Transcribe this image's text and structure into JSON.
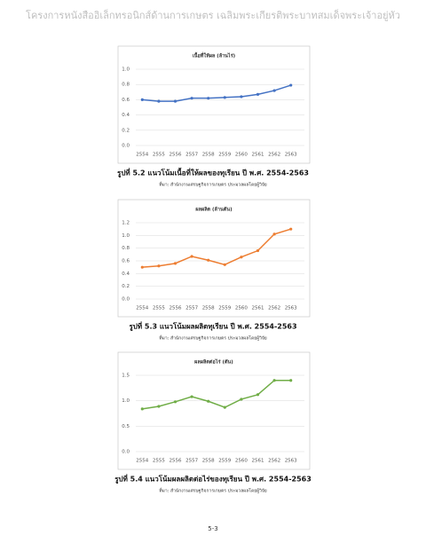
{
  "header": {
    "title": "โครงการหนังสืออิเล็กทรอนิกส์ด้านการเกษตร เฉลิมพระเกียรติพระบาทสมเด็จพระเจ้าอยู่หัว"
  },
  "chart_data": [
    {
      "type": "line",
      "title": "เนื้อที่ให้ผล (ล้านไร่)",
      "categories": [
        "2554",
        "2555",
        "2556",
        "2557",
        "2558",
        "2559",
        "2560",
        "2561",
        "2562",
        "2563"
      ],
      "series": [
        {
          "name": "เนื้อที่ให้ผล",
          "color": "#4472c4",
          "values": [
            0.6,
            0.58,
            0.58,
            0.62,
            0.62,
            0.63,
            0.64,
            0.67,
            0.72,
            0.79
          ]
        }
      ],
      "ylim": [
        0,
        1
      ],
      "yticks": [
        {
          "value": 0,
          "label": "0.0"
        },
        0.2,
        0.4,
        0.6,
        0.8,
        {
          "value": 1,
          "label": "1.0"
        }
      ],
      "grid": true
    },
    {
      "type": "line",
      "title": "ผลผลิต (ล้านตัน)",
      "categories": [
        "2554",
        "2555",
        "2556",
        "2557",
        "2558",
        "2559",
        "2560",
        "2561",
        "2562",
        "2563"
      ],
      "series": [
        {
          "name": "ผลผลิต",
          "color": "#ed7d31",
          "values": [
            0.5,
            0.52,
            0.56,
            0.67,
            0.61,
            0.54,
            0.66,
            0.76,
            1.02,
            1.1
          ]
        }
      ],
      "ylim": [
        0,
        1.2
      ],
      "yticks": [
        {
          "value": 0,
          "label": "0.0"
        },
        0.2,
        0.4,
        0.6,
        0.8,
        {
          "value": 1,
          "label": "1.0"
        },
        1.2
      ],
      "grid": true
    },
    {
      "type": "line",
      "title": "ผลผลิตต่อไร่ (ตัน)",
      "categories": [
        "2554",
        "2555",
        "2556",
        "2557",
        "2558",
        "2559",
        "2560",
        "2561",
        "2562",
        "2563"
      ],
      "series": [
        {
          "name": "ผลผลิตต่อไร่",
          "color": "#70ad47",
          "values": [
            0.84,
            0.89,
            0.98,
            1.08,
            0.99,
            0.87,
            1.03,
            1.12,
            1.4,
            1.4
          ]
        }
      ],
      "ylim": [
        0,
        1.5
      ],
      "yticks": [
        {
          "value": 0,
          "label": "0.0"
        },
        0.5,
        {
          "value": 1,
          "label": "1.0"
        },
        1.5
      ],
      "grid": true
    }
  ],
  "captions": [
    {
      "title": "รูปที่ 5.2 แนวโน้มเนื้อที่ให้ผลของทุเรียน ปี พ.ศ. 2554-2563",
      "source": "ที่มา: สำนักงานเศรษฐกิจการเกษตร ประมวลผลโดยผู้วิจัย"
    },
    {
      "title": "รูปที่ 5.3 แนวโน้มผลผลิตทุเรียน ปี พ.ศ. 2554-2563",
      "source": "ที่มา: สำนักงานเศรษฐกิจการเกษตร ประมวลผลโดยผู้วิจัย"
    },
    {
      "title": "รูปที่ 5.4 แนวโน้มผลผลิตต่อไร่ของทุเรียน ปี พ.ศ. 2554-2563",
      "source": "ที่มา: สำนักงานเศรษฐกิจการเกษตร ประมวลผลโดยผู้วิจัย"
    }
  ],
  "page_number": "5-3"
}
